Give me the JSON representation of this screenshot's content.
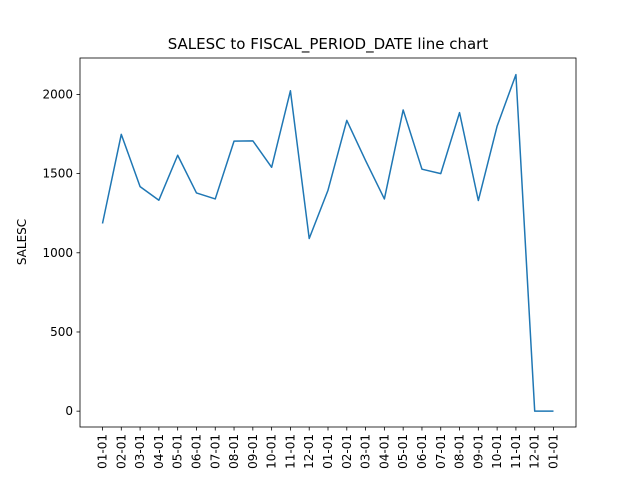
{
  "chart_data": {
    "type": "line",
    "title": "SALESC to FISCAL_PERIOD_DATE line chart",
    "xlabel": "",
    "ylabel": "SALESC",
    "x": [
      "01-01",
      "02-01",
      "03-01",
      "04-01",
      "05-01",
      "06-01",
      "07-01",
      "08-01",
      "09-01",
      "10-01",
      "11-01",
      "12-01",
      "01-01",
      "02-01",
      "03-01",
      "04-01",
      "05-01",
      "06-01",
      "07-01",
      "08-01",
      "09-01",
      "10-01",
      "11-01",
      "12-01",
      "01-01"
    ],
    "series": [
      {
        "color": "#1f77b4",
        "values": [
          1185,
          1748,
          1418,
          1332,
          1616,
          1378,
          1340,
          1705,
          1707,
          1540,
          2023,
          1090,
          1395,
          1836,
          1582,
          1340,
          1902,
          1528,
          1500,
          1885,
          1330,
          1800,
          2125,
          0,
          0
        ]
      }
    ],
    "ylim": [
      -100,
      2230
    ],
    "yticks": [
      0,
      500,
      1000,
      1500,
      2000
    ],
    "grid": false,
    "legend": "none"
  }
}
